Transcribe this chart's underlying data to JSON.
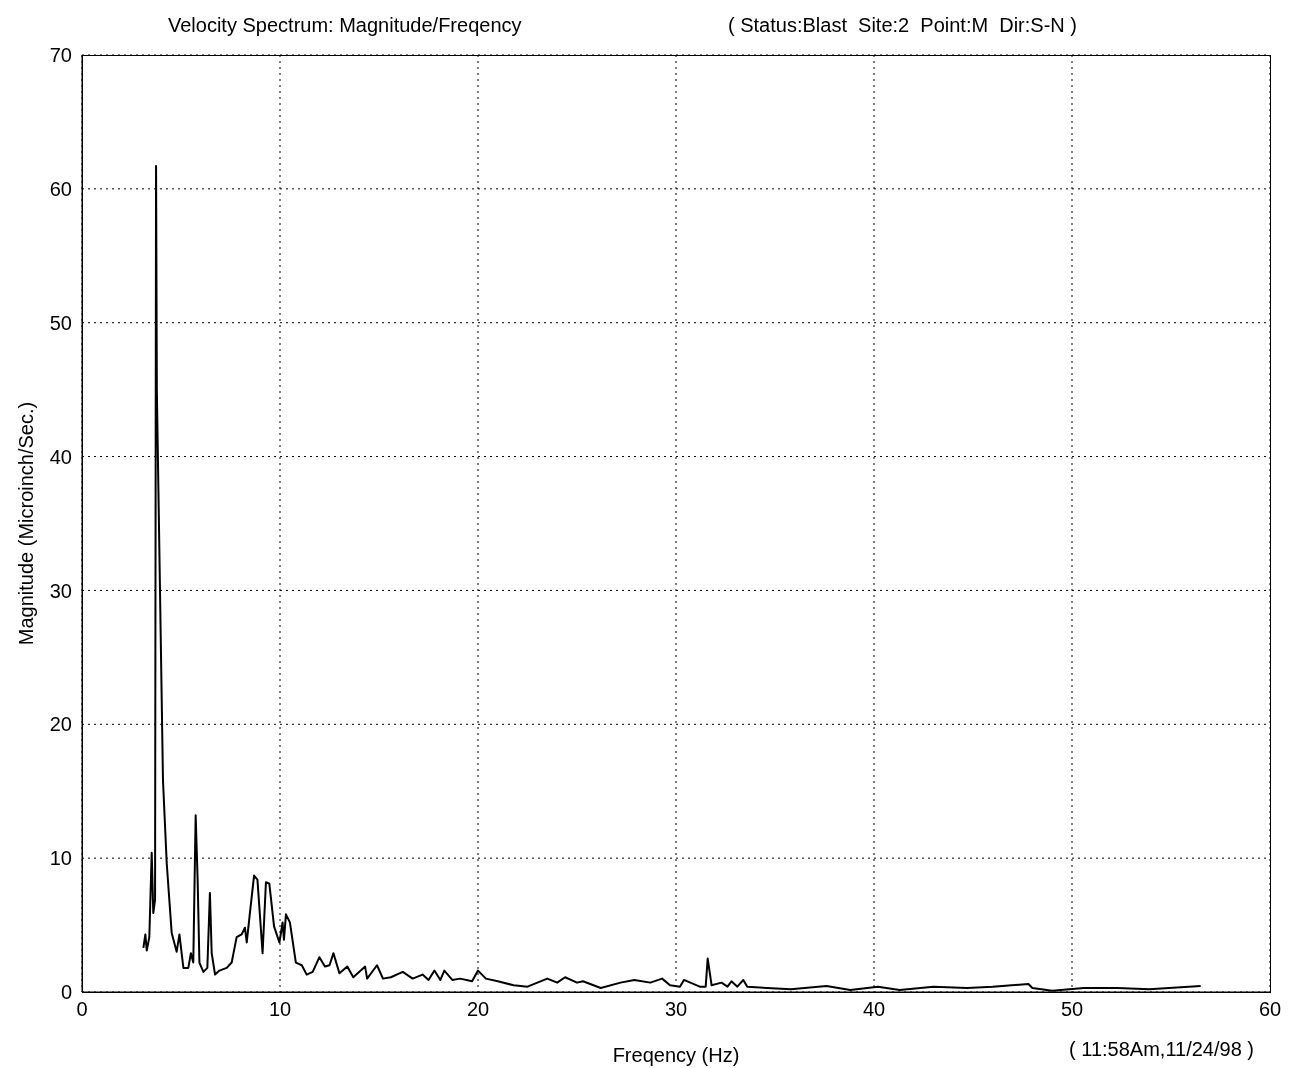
{
  "chart_data": {
    "type": "line",
    "title": "Velocity Spectrum: Magnitude/Freqency",
    "subtitle": "( Status:Blast  Site:2  Point:M  Dir:S-N )",
    "xlabel": "Freqency (Hz)",
    "ylabel": "Magnitude (Microinch/Sec.)",
    "annotations": [
      "( 11:58Am,11/24/98 )"
    ],
    "xlim": [
      0,
      60
    ],
    "xticks": [
      0,
      10,
      20,
      30,
      40,
      50,
      60
    ],
    "ylim": [
      0,
      70
    ],
    "yticks": [
      0,
      10,
      20,
      30,
      40,
      50,
      60,
      70
    ],
    "grid": true,
    "marker": "none",
    "line_style": "solid",
    "x": [
      3.1,
      3.2,
      3.27,
      3.4,
      3.52,
      3.6,
      3.69,
      3.74,
      3.78,
      4.09,
      4.28,
      4.53,
      4.78,
      4.92,
      5.12,
      5.37,
      5.5,
      5.62,
      5.74,
      5.84,
      5.93,
      6.13,
      6.33,
      6.46,
      6.55,
      6.72,
      6.94,
      7.31,
      7.56,
      7.81,
      8.06,
      8.23,
      8.32,
      8.48,
      8.69,
      8.86,
      9.12,
      9.29,
      9.46,
      9.7,
      9.97,
      10.13,
      10.2,
      10.3,
      10.5,
      10.8,
      11.1,
      11.35,
      11.65,
      11.99,
      12.27,
      12.5,
      12.7,
      13.0,
      13.4,
      13.7,
      14.3,
      14.4,
      14.9,
      15.2,
      15.6,
      16.2,
      16.7,
      17.2,
      17.5,
      17.8,
      18.1,
      18.3,
      18.7,
      19.1,
      19.7,
      20.0,
      20.4,
      21.0,
      21.8,
      22.5,
      23.5,
      24.0,
      24.4,
      25.0,
      25.3,
      26.2,
      27.2,
      27.9,
      28.7,
      29.3,
      29.7,
      30.2,
      30.4,
      31.2,
      31.5,
      31.6,
      31.8,
      32.3,
      32.6,
      32.8,
      33.1,
      33.4,
      33.6,
      34.6,
      35.8,
      37.6,
      38.8,
      40.2,
      41.3,
      43.0,
      44.7,
      46.0,
      47.8,
      48.0,
      49.0,
      50.6,
      52.3,
      53.9,
      56.5
    ],
    "series": [
      {
        "color": "#000000",
        "values": [
          3.3,
          4.3,
          3.1,
          4.1,
          10.4,
          5.9,
          6.9,
          61.7,
          45,
          15.8,
          9.6,
          4.4,
          3.0,
          4.3,
          1.8,
          1.8,
          2.9,
          2.2,
          13.2,
          8.4,
          2.2,
          1.5,
          1.8,
          7.4,
          2.9,
          1.3,
          1.6,
          1.8,
          2.2,
          4.1,
          4.3,
          4.8,
          3.7,
          5.9,
          8.7,
          8.4,
          2.9,
          8.2,
          8.1,
          4.9,
          3.7,
          5.2,
          3.9,
          5.8,
          5.2,
          2.2,
          2.0,
          1.3,
          1.5,
          2.6,
          1.9,
          2.0,
          2.9,
          1.4,
          1.9,
          1.1,
          1.9,
          1.0,
          2.0,
          1.0,
          1.1,
          1.5,
          1.0,
          1.3,
          0.9,
          1.6,
          0.9,
          1.6,
          0.9,
          1.0,
          0.8,
          1.6,
          1.0,
          0.8,
          0.5,
          0.4,
          1.0,
          0.7,
          1.1,
          0.7,
          0.8,
          0.3,
          0.7,
          0.9,
          0.7,
          1.0,
          0.5,
          0.4,
          0.9,
          0.4,
          0.4,
          2.5,
          0.5,
          0.7,
          0.4,
          0.8,
          0.4,
          0.9,
          0.4,
          0.3,
          0.2,
          0.45,
          0.15,
          0.4,
          0.15,
          0.4,
          0.3,
          0.4,
          0.6,
          0.3,
          0.1,
          0.3,
          0.3,
          0.2,
          0.45
        ]
      }
    ]
  }
}
